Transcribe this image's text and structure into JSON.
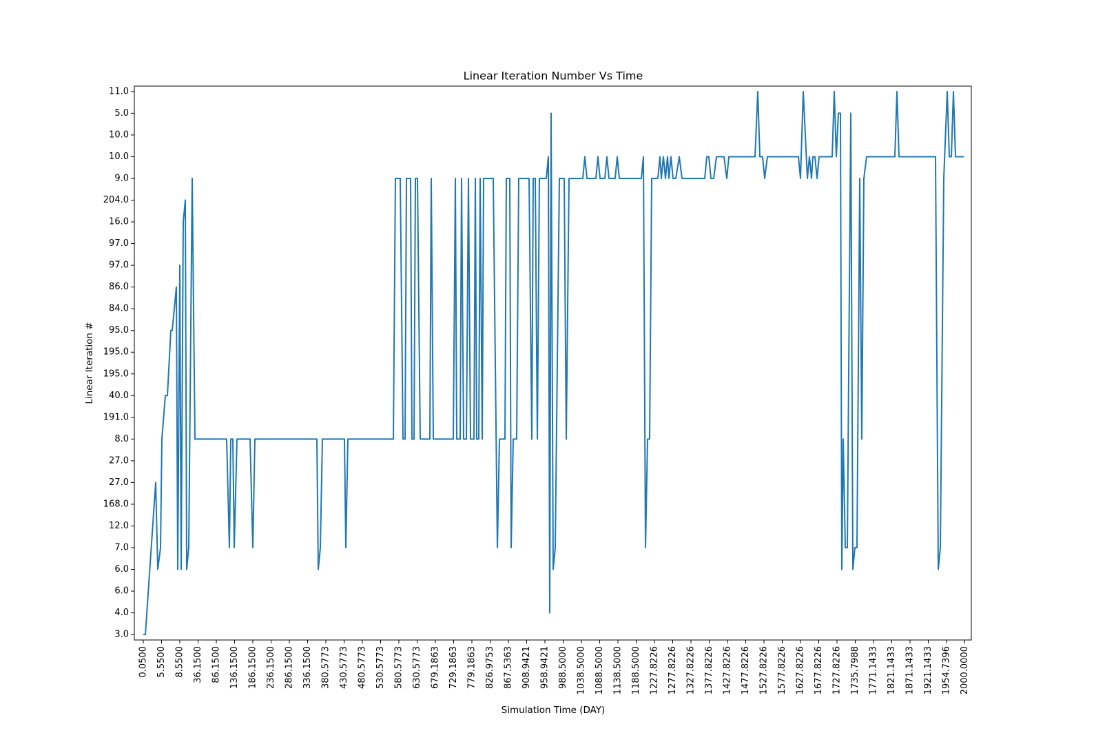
{
  "chart_data": {
    "type": "line",
    "title": "Linear Iteration Number Vs Time",
    "xlabel": "Simulation Time (DAY)",
    "ylabel": "Linear Iteration #",
    "xlim": [
      -13,
      1202
    ],
    "ylim": [
      -0.25,
      25.25
    ],
    "xticks": [
      {
        "value": 0,
        "label": "0.0500"
      },
      {
        "value": 26.5,
        "label": "5.5500"
      },
      {
        "value": 53,
        "label": "8.5500"
      },
      {
        "value": 79.5,
        "label": "36.1500"
      },
      {
        "value": 106,
        "label": "86.1500"
      },
      {
        "value": 132.5,
        "label": "136.1500"
      },
      {
        "value": 159,
        "label": "186.1500"
      },
      {
        "value": 185.5,
        "label": "236.1500"
      },
      {
        "value": 212,
        "label": "286.1500"
      },
      {
        "value": 238.5,
        "label": "336.1500"
      },
      {
        "value": 265,
        "label": "380.5773"
      },
      {
        "value": 291.5,
        "label": "430.5773"
      },
      {
        "value": 318,
        "label": "480.5773"
      },
      {
        "value": 344.5,
        "label": "530.5773"
      },
      {
        "value": 371,
        "label": "580.5773"
      },
      {
        "value": 397.5,
        "label": "630.5773"
      },
      {
        "value": 424,
        "label": "679.1863"
      },
      {
        "value": 450.5,
        "label": "729.1863"
      },
      {
        "value": 477,
        "label": "779.1863"
      },
      {
        "value": 503.5,
        "label": "826.9753"
      },
      {
        "value": 530,
        "label": "867.5363"
      },
      {
        "value": 556.5,
        "label": "908.9421"
      },
      {
        "value": 583,
        "label": "958.9421"
      },
      {
        "value": 609.5,
        "label": "988.5000"
      },
      {
        "value": 636,
        "label": "1038.5000"
      },
      {
        "value": 662.5,
        "label": "1088.5000"
      },
      {
        "value": 689,
        "label": "1138.5000"
      },
      {
        "value": 715.5,
        "label": "1188.5000"
      },
      {
        "value": 742,
        "label": "1227.8226"
      },
      {
        "value": 768.5,
        "label": "1277.8226"
      },
      {
        "value": 795,
        "label": "1327.8226"
      },
      {
        "value": 821.5,
        "label": "1377.8226"
      },
      {
        "value": 848,
        "label": "1427.8226"
      },
      {
        "value": 874.5,
        "label": "1477.8226"
      },
      {
        "value": 901,
        "label": "1527.8226"
      },
      {
        "value": 927.5,
        "label": "1577.8226"
      },
      {
        "value": 954,
        "label": "1627.8226"
      },
      {
        "value": 980.5,
        "label": "1677.8226"
      },
      {
        "value": 1007,
        "label": "1727.8226"
      },
      {
        "value": 1033.5,
        "label": "1735.7988"
      },
      {
        "value": 1060,
        "label": "1771.1433"
      },
      {
        "value": 1086.5,
        "label": "1821.1433"
      },
      {
        "value": 1113,
        "label": "1871.1433"
      },
      {
        "value": 1139.5,
        "label": "1921.1433"
      },
      {
        "value": 1166,
        "label": "1954.7396"
      },
      {
        "value": 1192.5,
        "label": "2000.0000"
      }
    ],
    "yticks": [
      {
        "value": 0,
        "label": "3.0"
      },
      {
        "value": 1,
        "label": "4.0"
      },
      {
        "value": 2,
        "label": "6.0"
      },
      {
        "value": 3,
        "label": "6.0"
      },
      {
        "value": 4,
        "label": "7.0"
      },
      {
        "value": 5,
        "label": "12.0"
      },
      {
        "value": 6,
        "label": "168.0"
      },
      {
        "value": 7,
        "label": "27.0"
      },
      {
        "value": 8,
        "label": "27.0"
      },
      {
        "value": 9,
        "label": "8.0"
      },
      {
        "value": 10,
        "label": "191.0"
      },
      {
        "value": 11,
        "label": "40.0"
      },
      {
        "value": 12,
        "label": "195.0"
      },
      {
        "value": 13,
        "label": "195.0"
      },
      {
        "value": 14,
        "label": "95.0"
      },
      {
        "value": 15,
        "label": "84.0"
      },
      {
        "value": 16,
        "label": "86.0"
      },
      {
        "value": 17,
        "label": "97.0"
      },
      {
        "value": 18,
        "label": "97.0"
      },
      {
        "value": 19,
        "label": "16.0"
      },
      {
        "value": 20,
        "label": "204.0"
      },
      {
        "value": 21,
        "label": "9.0"
      },
      {
        "value": 22,
        "label": "10.0"
      },
      {
        "value": 23,
        "label": "10.0"
      },
      {
        "value": 24,
        "label": "5.0"
      },
      {
        "value": 25,
        "label": "11.0"
      }
    ],
    "color": "#1f77b4",
    "x": [
      0,
      3,
      18,
      21,
      25,
      27,
      32,
      35,
      40,
      42,
      48,
      50,
      53,
      55,
      58,
      61,
      63,
      66,
      71,
      75,
      121,
      125,
      127,
      130,
      132,
      136,
      155,
      159,
      162,
      252,
      254,
      257,
      260,
      292,
      294,
      297,
      363,
      366,
      373,
      377,
      380,
      382,
      388,
      390,
      393,
      395,
      398,
      402,
      416,
      418,
      421,
      450,
      453,
      455,
      460,
      462,
      465,
      469,
      472,
      475,
      480,
      482,
      484,
      487,
      489,
      492,
      494,
      508,
      514,
      517,
      525,
      527,
      532,
      534,
      537,
      542,
      545,
      560,
      564,
      566,
      569,
      572,
      575,
      585,
      588,
      590,
      592,
      595,
      598,
      604,
      611,
      614,
      618,
      638,
      641,
      644,
      657,
      660,
      663,
      670,
      673,
      676,
      685,
      688,
      691,
      723,
      726,
      729,
      732,
      735,
      738,
      747,
      750,
      752,
      755,
      758,
      761,
      763,
      766,
      769,
      773,
      778,
      782,
      815,
      818,
      821,
      824,
      828,
      832,
      843,
      847,
      850,
      888,
      892,
      895,
      899,
      902,
      906,
      951,
      954,
      958,
      964,
      967,
      970,
      972,
      975,
      978,
      981,
      1000,
      1003,
      1006,
      1009,
      1012,
      1014,
      1016,
      1019,
      1022,
      1027,
      1030,
      1033,
      1036,
      1040,
      1043,
      1046,
      1050,
      1091,
      1094,
      1097,
      1150,
      1154,
      1157,
      1162,
      1167,
      1170,
      1173,
      1176,
      1179,
      1191
    ],
    "values": [
      0,
      0,
      7,
      3,
      4,
      9,
      11,
      11,
      14,
      14,
      16,
      3,
      17,
      3,
      19,
      20,
      3,
      4,
      21,
      9,
      9,
      4,
      9,
      9,
      4,
      9,
      9,
      4,
      9,
      9,
      3,
      4,
      9,
      9,
      4,
      9,
      9,
      21,
      21,
      9,
      9,
      21,
      21,
      9,
      9,
      21,
      21,
      9,
      9,
      21,
      9,
      9,
      21,
      9,
      9,
      21,
      9,
      9,
      21,
      9,
      9,
      21,
      9,
      9,
      21,
      9,
      21,
      21,
      4,
      9,
      9,
      21,
      21,
      4,
      9,
      9,
      21,
      21,
      9,
      21,
      21,
      9,
      21,
      21,
      22,
      1,
      24,
      3,
      4,
      21,
      21,
      9,
      21,
      21,
      22,
      21,
      21,
      22,
      21,
      21,
      22,
      21,
      21,
      22,
      21,
      21,
      22,
      4,
      9,
      9,
      21,
      21,
      22,
      21,
      22,
      21,
      22,
      21,
      22,
      21,
      21,
      22,
      21,
      21,
      22,
      22,
      21,
      21,
      22,
      22,
      21,
      22,
      22,
      25,
      22,
      22,
      21,
      22,
      22,
      21,
      25,
      21,
      22,
      21,
      22,
      22,
      21,
      22,
      22,
      25,
      22,
      24,
      24,
      3,
      9,
      4,
      4,
      24,
      3,
      4,
      4,
      21,
      9,
      21,
      22,
      22,
      25,
      22,
      22,
      3,
      4,
      21,
      25,
      22,
      22,
      25,
      22,
      22
    ]
  }
}
